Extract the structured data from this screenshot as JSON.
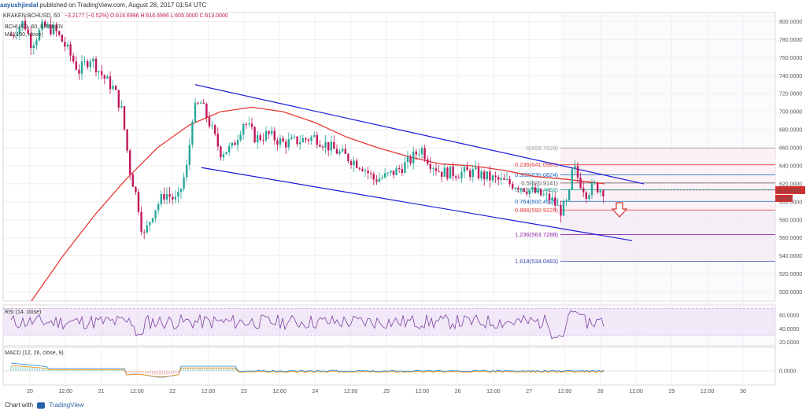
{
  "header": {
    "author": "aayushjindal",
    "published_text": "published on TradingView.com, August 28, 2017 01:54 UTC",
    "symbol_line": "KRAKEN:BCHUSD, 60",
    "ohlc": "−3.2177 (−0.52%) O:616.6996 H:616.6996 L:605.0000 C:613.0000"
  },
  "legend": {
    "symbol": "BCHUSD, 60, KRAKEN",
    "ma": "MA (100, close)",
    "rsi": "RSI (14, close)",
    "macd": "MACD (12, 26, close, 9)"
  },
  "footer": {
    "chart_with": "Chart with",
    "brand": "TradingView"
  },
  "colors": {
    "up": "#26a69a",
    "down": "#c2185b",
    "ma": "#e53935",
    "channel": "#1a1ad6",
    "rsi": "#7b3fa0",
    "price_tag": "#d32f2f"
  },
  "chart_data": {
    "type": "candlestick",
    "price_axis": {
      "ylim": [
        490,
        810
      ],
      "ticks": [
        "800.0000",
        "780.0000",
        "760.0000",
        "740.0000",
        "720.0000",
        "700.0000",
        "680.0000",
        "660.0000",
        "640.0000",
        "620.0000",
        "600.0000",
        "580.0000",
        "560.0000",
        "540.0000",
        "520.0000",
        "500.0000"
      ]
    },
    "time_axis": {
      "ticks": [
        "20",
        "12:00",
        "21",
        "12:00",
        "22",
        "12:00",
        "23",
        "12:00",
        "24",
        "12:00",
        "25",
        "12:00",
        "26",
        "12:00",
        "27",
        "12:00",
        "28",
        "12:00",
        "29",
        "12:00",
        "30"
      ]
    },
    "last_price": "613.0000",
    "countdown": "05:28",
    "fibonacci": [
      {
        "label": "0(659.7629)",
        "level": 659.7629,
        "color": "#9e9e9e"
      },
      {
        "label": "0.236(641.0985)",
        "level": 641.0985,
        "color": "#e53935"
      },
      {
        "label": "0.382(630.0824)",
        "level": 630.0824,
        "color": "#1565c0"
      },
      {
        "label": "0.5(620.9141)",
        "level": 620.9141,
        "color": "#555555"
      },
      {
        "label": "0.618(613.4458)",
        "level": 613.4458,
        "color": "#26a69a"
      },
      {
        "label": "0.764(600.4925)",
        "level": 600.4925,
        "color": "#1565c0"
      },
      {
        "label": "0.886(590.9229)",
        "level": 590.9229,
        "color": "#e53935"
      },
      {
        "label": "1.236(563.7288)",
        "level": 563.7288,
        "color": "#8e24aa"
      },
      {
        "label": "1.618(534.0483)",
        "level": 534.0483,
        "color": "#3949ab"
      }
    ],
    "rsi_axis": {
      "ylim": [
        15,
        75
      ],
      "ticks": [
        "60.0000",
        "40.0000",
        "20.0000"
      ],
      "band": [
        30,
        70
      ]
    },
    "macd_axis": {
      "ticks": [
        "0.0000"
      ]
    }
  }
}
